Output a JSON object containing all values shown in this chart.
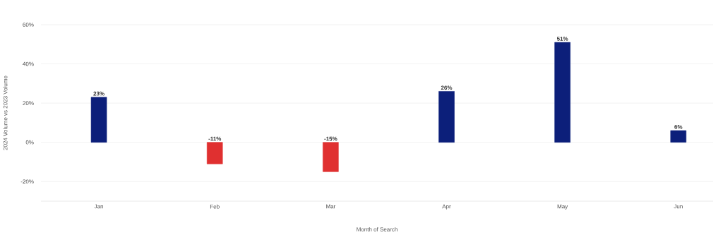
{
  "chart_data": {
    "type": "bar",
    "xlabel": "Month of Search",
    "ylabel": "2024 Volume vs 2023 Volume",
    "categories": [
      "Jan",
      "Feb",
      "Mar",
      "Apr",
      "May",
      "Jun"
    ],
    "values": [
      23,
      -11,
      -15,
      26,
      51,
      6
    ],
    "colors": [
      "#0c1f7a",
      "#e03030",
      "#e03030",
      "#0c1f7a",
      "#0c1f7a",
      "#0c1f7a"
    ],
    "value_labels": [
      "23%",
      "-11%",
      "-15%",
      "26%",
      "51%",
      "6%"
    ],
    "ylim": [
      -30,
      60
    ],
    "yticks": [
      {
        "value": -20,
        "label": "-20%"
      },
      {
        "value": 0,
        "label": "0%"
      },
      {
        "value": 20,
        "label": "20%"
      },
      {
        "value": 40,
        "label": "40%"
      },
      {
        "value": 60,
        "label": "60%"
      }
    ],
    "grid": "y"
  }
}
